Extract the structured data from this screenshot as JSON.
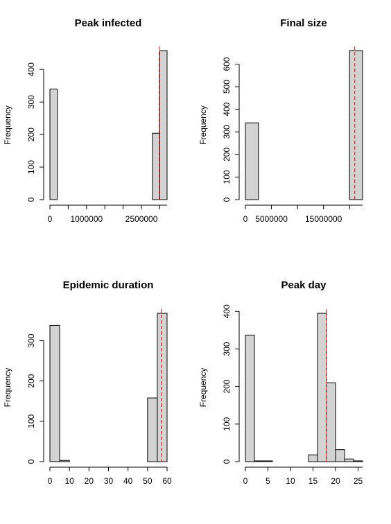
{
  "chart_data": [
    {
      "type": "histogram",
      "title": "Peak infected",
      "ylabel": "Frequency",
      "color": "#d3d3d3",
      "bins": [
        0,
        200000,
        400000,
        600000,
        800000,
        1000000,
        1200000,
        1400000,
        1600000,
        1800000,
        2000000,
        2200000,
        2400000,
        2600000,
        2800000,
        3000000,
        3200000
      ],
      "values": [
        340,
        0,
        0,
        0,
        0,
        0,
        0,
        0,
        0,
        0,
        0,
        0,
        0,
        0,
        204,
        458
      ],
      "xlim": [
        0,
        3200000
      ],
      "ylim": [
        0,
        458
      ],
      "xticks": [
        0,
        {
          "value": 500000,
          "label": null
        },
        1000000,
        {
          "value": 1500000,
          "label": null
        },
        {
          "value": 2000000,
          "label": null
        },
        2500000,
        {
          "value": 3000000,
          "label": null
        }
      ],
      "yticks": [
        0,
        100,
        200,
        300,
        400
      ],
      "vline": {
        "value": 2990000,
        "color": "#ff0000"
      }
    },
    {
      "type": "histogram",
      "title": "Final size",
      "ylabel": "Frequency",
      "color": "#d3d3d3",
      "bins": [
        0,
        2500000,
        5000000,
        7500000,
        10000000,
        12500000,
        15000000,
        17500000,
        20000000,
        22500000
      ],
      "values": [
        340,
        0,
        0,
        0,
        0,
        0,
        0,
        0,
        660
      ],
      "xlim": [
        0,
        22500000
      ],
      "ylim": [
        0,
        660
      ],
      "xticks": [
        0,
        5000000,
        {
          "value": 10000000,
          "label": null
        },
        15000000,
        {
          "value": 20000000,
          "label": null
        }
      ],
      "yticks": [
        0,
        100,
        200,
        300,
        400,
        500,
        600
      ],
      "vline": {
        "value": 21000000,
        "color": "#ff0000"
      }
    },
    {
      "type": "histogram",
      "title": "Epidemic duration",
      "ylabel": "Frequency",
      "color": "#d3d3d3",
      "bins": [
        0,
        5,
        10,
        15,
        20,
        25,
        30,
        35,
        40,
        45,
        50,
        55,
        60
      ],
      "values": [
        338,
        3,
        0,
        0,
        0,
        0,
        0,
        0,
        0,
        0,
        158,
        368
      ],
      "xlim": [
        0,
        60
      ],
      "ylim": [
        0,
        368
      ],
      "xticks": [
        0,
        10,
        20,
        30,
        40,
        50,
        60
      ],
      "yticks": [
        0,
        100,
        200,
        300
      ],
      "vline": {
        "value": 57,
        "color": "#ff0000"
      }
    },
    {
      "type": "histogram",
      "title": "Peak day",
      "ylabel": "Frequency",
      "color": "#d3d3d3",
      "bins": [
        0,
        2,
        4,
        6,
        8,
        10,
        12,
        14,
        16,
        18,
        20,
        22,
        24,
        26
      ],
      "values": [
        337,
        2,
        2,
        0,
        0,
        0,
        0,
        18,
        395,
        210,
        32,
        7,
        2
      ],
      "xlim": [
        0,
        26
      ],
      "ylim": [
        0,
        395
      ],
      "xticks": [
        0,
        5,
        10,
        15,
        20,
        25
      ],
      "yticks": [
        0,
        100,
        200,
        300,
        400
      ],
      "vline": {
        "value": 18,
        "color": "#ff0000"
      }
    }
  ]
}
